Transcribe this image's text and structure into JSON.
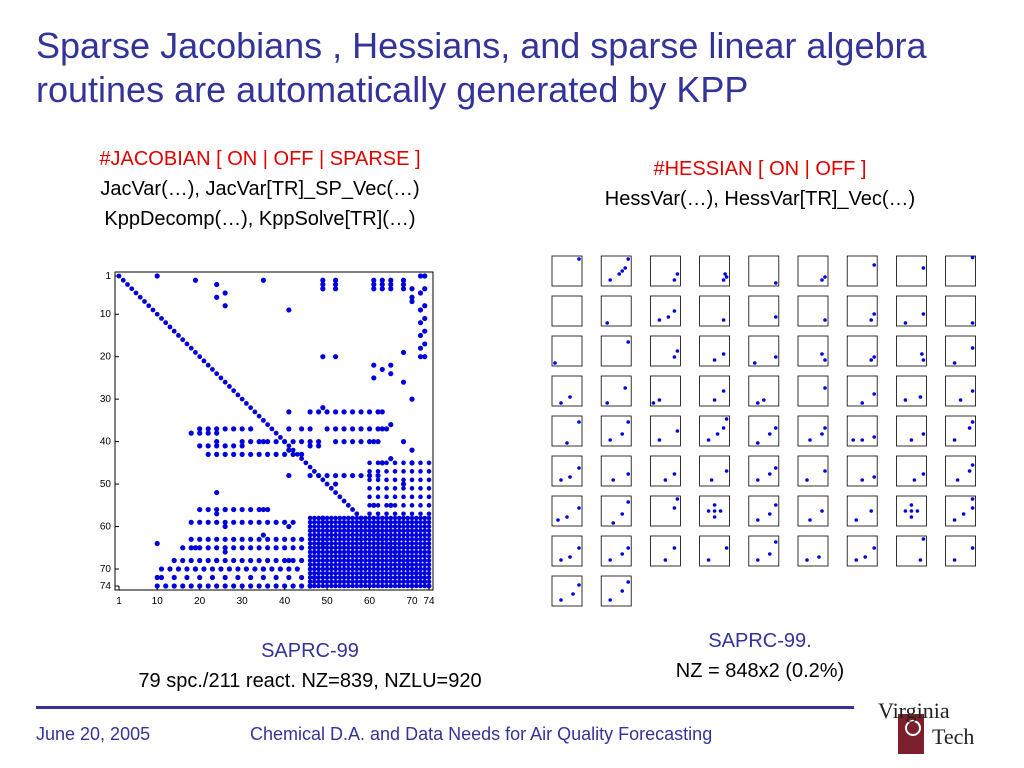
{
  "slide": {
    "title": "Sparse Jacobians , Hessians, and sparse linear algebra routines are automatically generated by KPP"
  },
  "jacobian": {
    "option_line": "#JACOBIAN [ ON | OFF | SPARSE ]",
    "line1": "JacVar(…), JacVar[TR]_SP_Vec(…)",
    "line2": "KppDecomp(…), KppSolve[TR](…)",
    "caption_title": "SAPRC-99",
    "caption_stats": "79 spc./211 react. NZ=839, NZLU=920"
  },
  "hessian": {
    "option_line": "#HESSIAN [ ON | OFF ]",
    "line1": "HessVar(…), HessVar[TR]_Vec(…)",
    "caption_title": "SAPRC-99.",
    "caption_stats": "NZ = 848x2 (0.2%)"
  },
  "footer": {
    "date": "June 20, 2005",
    "title": "Chemical D.A. and Data Needs for Air Quality Forecasting",
    "logo_line1": "Virginia",
    "logo_line2": "Tech"
  },
  "colors": {
    "title_blue": "#333399",
    "option_red": "#e00000",
    "marker_blue": "#0000dd",
    "footer_blue": "#333399"
  },
  "chart_data": [
    {
      "type": "scatter",
      "title": "",
      "xlabel": "",
      "ylabel": "",
      "xlim": [
        1,
        74
      ],
      "ylim": [
        74,
        1
      ],
      "x_ticks": [
        "1",
        "10",
        "20",
        "30",
        "40",
        "50",
        "60",
        "70",
        "74"
      ],
      "y_ticks": [
        "1",
        "10",
        "20",
        "30",
        "40",
        "50",
        "60",
        "70",
        "74"
      ],
      "diagonal": {
        "from": 1,
        "to": 74
      },
      "columns": [
        {
          "x": 10,
          "rows": [
            1,
            64,
            72
          ]
        },
        {
          "x": 19,
          "rows": [
            2,
            65,
            70
          ]
        },
        {
          "x": 24,
          "rows": [
            3,
            6,
            52,
            57,
            68
          ]
        },
        {
          "x": 26,
          "rows": [
            5,
            8,
            56,
            60,
            66
          ]
        },
        {
          "x": 35,
          "rows": [
            2,
            40,
            56,
            62,
            70
          ]
        },
        {
          "x": 41,
          "rows": [
            9,
            33,
            37,
            42,
            48,
            60,
            68
          ]
        },
        {
          "x": 49,
          "rows": [
            2,
            3,
            4,
            20,
            32,
            58,
            64
          ]
        },
        {
          "x": 52,
          "rows": [
            2,
            3,
            4,
            20,
            50
          ]
        },
        {
          "x": 61,
          "rows": [
            2,
            3,
            4,
            22,
            25,
            40,
            55
          ]
        },
        {
          "x": 63,
          "rows": [
            2,
            3,
            4,
            23,
            33,
            37,
            45
          ]
        },
        {
          "x": 65,
          "rows": [
            2,
            3,
            4,
            22,
            24,
            36,
            44,
            55
          ]
        },
        {
          "x": 68,
          "rows": [
            2,
            3,
            4,
            19,
            26,
            40,
            50
          ]
        },
        {
          "x": 70,
          "rows": [
            4,
            6,
            7,
            30,
            42,
            45
          ]
        },
        {
          "x": 72,
          "rows": [
            1,
            5,
            9,
            12,
            15,
            18,
            20
          ]
        },
        {
          "x": 73,
          "rows": [
            1,
            4,
            8,
            11,
            14,
            17,
            20
          ]
        }
      ],
      "rows": [
        {
          "y": 33,
          "cols": [
            46,
            48,
            50,
            52,
            54,
            56,
            58,
            60,
            62
          ]
        },
        {
          "y": 37,
          "cols": [
            20,
            22,
            24,
            26,
            28,
            30,
            32,
            44,
            46,
            50,
            52,
            54,
            56,
            58,
            60,
            62,
            64
          ]
        },
        {
          "y": 38,
          "cols": [
            18,
            20,
            22,
            24
          ]
        },
        {
          "y": 40,
          "cols": [
            24,
            30,
            32,
            34,
            36,
            38,
            40,
            42,
            44,
            46,
            48,
            52,
            54,
            56,
            58,
            60,
            62
          ]
        },
        {
          "y": 41,
          "cols": [
            20,
            22,
            24,
            26,
            28,
            30,
            46,
            48
          ]
        },
        {
          "y": 43,
          "cols": [
            22,
            24,
            26,
            28,
            30,
            32,
            34,
            36,
            38,
            40,
            42,
            44
          ]
        },
        {
          "y": 48,
          "cols": [
            46,
            48,
            50,
            52,
            54,
            56,
            58,
            60,
            62
          ]
        },
        {
          "y": 56,
          "cols": [
            20,
            22,
            24,
            26,
            28,
            30,
            32,
            34,
            36
          ]
        },
        {
          "y": 59,
          "cols": [
            18,
            20,
            22,
            24,
            26,
            28,
            30,
            32,
            34,
            36,
            38,
            40,
            42
          ]
        },
        {
          "y": 63,
          "cols": [
            18,
            20,
            22,
            24,
            26,
            28,
            30,
            32,
            34,
            36,
            38,
            40,
            42,
            44
          ]
        },
        {
          "y": 65,
          "cols": [
            16,
            18,
            20,
            22,
            24,
            26,
            28,
            30,
            32,
            34,
            36,
            38,
            40,
            42,
            44
          ]
        },
        {
          "y": 68,
          "cols": [
            14,
            16,
            18,
            20,
            22,
            24,
            26,
            28,
            30,
            32,
            34,
            36,
            38,
            40,
            42,
            44
          ]
        },
        {
          "y": 70,
          "cols": [
            11,
            13,
            15,
            17,
            19,
            21,
            23,
            25,
            27,
            29,
            31,
            33,
            35,
            37,
            39,
            41,
            43
          ]
        },
        {
          "y": 72,
          "cols": [
            11,
            14,
            17,
            20,
            23,
            26,
            29,
            32,
            35,
            38,
            41,
            44,
            47
          ]
        },
        {
          "y": 74,
          "cols": [
            10,
            12,
            14,
            16,
            18,
            20,
            22,
            24,
            26,
            28,
            30,
            32,
            34,
            36,
            38,
            40,
            42,
            44,
            46
          ]
        }
      ],
      "dense_block": {
        "x_from": 46,
        "x_to": 74,
        "y_from": 58,
        "y_to": 74
      },
      "dense_strip": {
        "x_from": 60,
        "x_to": 74,
        "y_from": 45,
        "y_to": 58
      }
    },
    {
      "type": "scatter",
      "title": "",
      "grid": {
        "rows": 9,
        "cols": 9,
        "panels_shown": 74
      },
      "panels": [
        [
          [
            0.9,
            0.9
          ]
        ],
        [
          [
            0.3,
            0.2
          ],
          [
            0.6,
            0.4
          ],
          [
            0.8,
            0.6
          ],
          [
            0.9,
            0.9
          ],
          [
            0.7,
            0.5
          ]
        ],
        [
          [
            0.8,
            0.2
          ],
          [
            0.9,
            0.4
          ]
        ],
        [
          [
            0.8,
            0.2
          ],
          [
            0.9,
            0.3
          ],
          [
            0.85,
            0.4
          ]
        ],
        [
          [
            0.9,
            0.1
          ]
        ],
        [
          [
            0.8,
            0.2
          ],
          [
            0.9,
            0.3
          ]
        ],
        [
          [
            0.9,
            0.7
          ]
        ],
        [
          [
            0.9,
            0.6
          ]
        ],
        [
          [
            0.9,
            0.95
          ]
        ],
        [],
        [
          [
            0.2,
            0.1
          ]
        ],
        [
          [
            0.3,
            0.2
          ],
          [
            0.6,
            0.3
          ],
          [
            0.8,
            0.5
          ]
        ],
        [
          [
            0.8,
            0.2
          ]
        ],
        [
          [
            0.9,
            0.3
          ]
        ],
        [
          [
            0.9,
            0.2
          ]
        ],
        [
          [
            0.8,
            0.2
          ],
          [
            0.9,
            0.4
          ]
        ],
        [
          [
            0.3,
            0.1
          ],
          [
            0.9,
            0.4
          ]
        ],
        [
          [
            0.9,
            0.1
          ]
        ],
        [
          [
            0.1,
            0.1
          ]
        ],
        [
          [
            0.9,
            0.8
          ]
        ],
        [
          [
            0.8,
            0.3
          ],
          [
            0.9,
            0.5
          ]
        ],
        [
          [
            0.5,
            0.2
          ],
          [
            0.8,
            0.4
          ]
        ],
        [
          [
            0.2,
            0.1
          ],
          [
            0.9,
            0.3
          ]
        ],
        [
          [
            0.9,
            0.2
          ],
          [
            0.8,
            0.4
          ]
        ],
        [
          [
            0.8,
            0.2
          ],
          [
            0.9,
            0.3
          ]
        ],
        [
          [
            0.9,
            0.2
          ],
          [
            0.85,
            0.4
          ]
        ],
        [
          [
            0.3,
            0.1
          ],
          [
            0.9,
            0.6
          ]
        ],
        [
          [
            0.3,
            0.1
          ],
          [
            0.6,
            0.3
          ]
        ],
        [
          [
            0.2,
            0.1
          ],
          [
            0.8,
            0.6
          ]
        ],
        [
          [
            0.1,
            0.1
          ],
          [
            0.3,
            0.2
          ]
        ],
        [
          [
            0.5,
            0.2
          ],
          [
            0.8,
            0.5
          ]
        ],
        [
          [
            0.3,
            0.1
          ],
          [
            0.5,
            0.2
          ]
        ],
        [
          [
            0.9,
            0.6
          ]
        ],
        [
          [
            0.5,
            0.1
          ],
          [
            0.9,
            0.4
          ]
        ],
        [
          [
            0.3,
            0.2
          ],
          [
            0.8,
            0.3
          ]
        ],
        [
          [
            0.5,
            0.2
          ],
          [
            0.9,
            0.5
          ]
        ],
        [
          [
            0.5,
            0.1
          ],
          [
            0.9,
            0.8
          ]
        ],
        [
          [
            0.3,
            0.2
          ],
          [
            0.7,
            0.4
          ],
          [
            0.9,
            0.8
          ]
        ],
        [
          [
            0.3,
            0.2
          ],
          [
            0.9,
            0.5
          ]
        ],
        [
          [
            0.3,
            0.2
          ],
          [
            0.6,
            0.4
          ],
          [
            0.8,
            0.6
          ],
          [
            0.9,
            0.9
          ]
        ],
        [
          [
            0.3,
            0.1
          ],
          [
            0.7,
            0.4
          ],
          [
            0.9,
            0.6
          ]
        ],
        [
          [
            0.4,
            0.2
          ],
          [
            0.8,
            0.4
          ],
          [
            0.9,
            0.6
          ]
        ],
        [
          [
            0.2,
            0.2
          ],
          [
            0.5,
            0.2
          ],
          [
            0.9,
            0.3
          ]
        ],
        [
          [
            0.5,
            0.2
          ],
          [
            0.9,
            0.4
          ]
        ],
        [
          [
            0.3,
            0.2
          ],
          [
            0.8,
            0.6
          ],
          [
            0.9,
            0.8
          ]
        ],
        [
          [
            0.3,
            0.2
          ],
          [
            0.6,
            0.3
          ],
          [
            0.9,
            0.6
          ]
        ],
        [
          [
            0.4,
            0.2
          ],
          [
            0.9,
            0.4
          ]
        ],
        [
          [
            0.5,
            0.2
          ],
          [
            0.8,
            0.4
          ]
        ],
        [
          [
            0.4,
            0.2
          ],
          [
            0.9,
            0.5
          ]
        ],
        [
          [
            0.3,
            0.2
          ],
          [
            0.7,
            0.4
          ],
          [
            0.9,
            0.6
          ]
        ],
        [
          [
            0.3,
            0.2
          ],
          [
            0.9,
            0.5
          ]
        ],
        [
          [
            0.5,
            0.2
          ],
          [
            0.9,
            0.3
          ]
        ],
        [
          [
            0.6,
            0.2
          ],
          [
            0.9,
            0.4
          ]
        ],
        [
          [
            0.4,
            0.2
          ],
          [
            0.8,
            0.5
          ],
          [
            0.9,
            0.7
          ]
        ],
        [
          [
            0.2,
            0.2
          ],
          [
            0.5,
            0.3
          ],
          [
            0.9,
            0.6
          ]
        ],
        [
          [
            0.4,
            0.1
          ],
          [
            0.7,
            0.4
          ],
          [
            0.9,
            0.8
          ]
        ],
        [
          [
            0.8,
            0.6
          ],
          [
            0.9,
            0.9
          ]
        ],
        [
          [
            0.5,
            0.5
          ],
          [
            0.3,
            0.5
          ],
          [
            0.7,
            0.5
          ],
          [
            0.5,
            0.3
          ],
          [
            0.5,
            0.7
          ]
        ],
        [
          [
            0.3,
            0.2
          ],
          [
            0.7,
            0.4
          ],
          [
            0.9,
            0.7
          ]
        ],
        [
          [
            0.4,
            0.2
          ],
          [
            0.8,
            0.5
          ]
        ],
        [
          [
            0.3,
            0.2
          ],
          [
            0.8,
            0.5
          ]
        ],
        [
          [
            0.5,
            0.5
          ],
          [
            0.3,
            0.5
          ],
          [
            0.7,
            0.5
          ],
          [
            0.5,
            0.3
          ],
          [
            0.5,
            0.7
          ]
        ],
        [
          [
            0.3,
            0.2
          ],
          [
            0.6,
            0.4
          ],
          [
            0.9,
            0.6
          ],
          [
            0.9,
            0.9
          ]
        ],
        [
          [
            0.3,
            0.2
          ],
          [
            0.6,
            0.3
          ],
          [
            0.9,
            0.6
          ]
        ],
        [
          [
            0.3,
            0.2
          ],
          [
            0.7,
            0.4
          ],
          [
            0.9,
            0.6
          ]
        ],
        [
          [
            0.5,
            0.2
          ],
          [
            0.8,
            0.6
          ]
        ],
        [
          [
            0.3,
            0.2
          ],
          [
            0.9,
            0.6
          ]
        ],
        [
          [
            0.3,
            0.2
          ],
          [
            0.7,
            0.4
          ],
          [
            0.9,
            0.8
          ]
        ],
        [
          [
            0.3,
            0.2
          ],
          [
            0.7,
            0.3
          ]
        ],
        [
          [
            0.3,
            0.2
          ],
          [
            0.6,
            0.3
          ],
          [
            0.9,
            0.6
          ]
        ],
        [
          [
            0.8,
            0.2
          ],
          [
            0.9,
            0.9
          ]
        ],
        [
          [
            0.3,
            0.2
          ],
          [
            0.9,
            0.6
          ]
        ],
        [
          [
            0.3,
            0.2
          ],
          [
            0.7,
            0.4
          ],
          [
            0.9,
            0.7
          ]
        ],
        [
          [
            0.3,
            0.2
          ],
          [
            0.7,
            0.5
          ],
          [
            0.9,
            0.8
          ]
        ]
      ]
    }
  ]
}
